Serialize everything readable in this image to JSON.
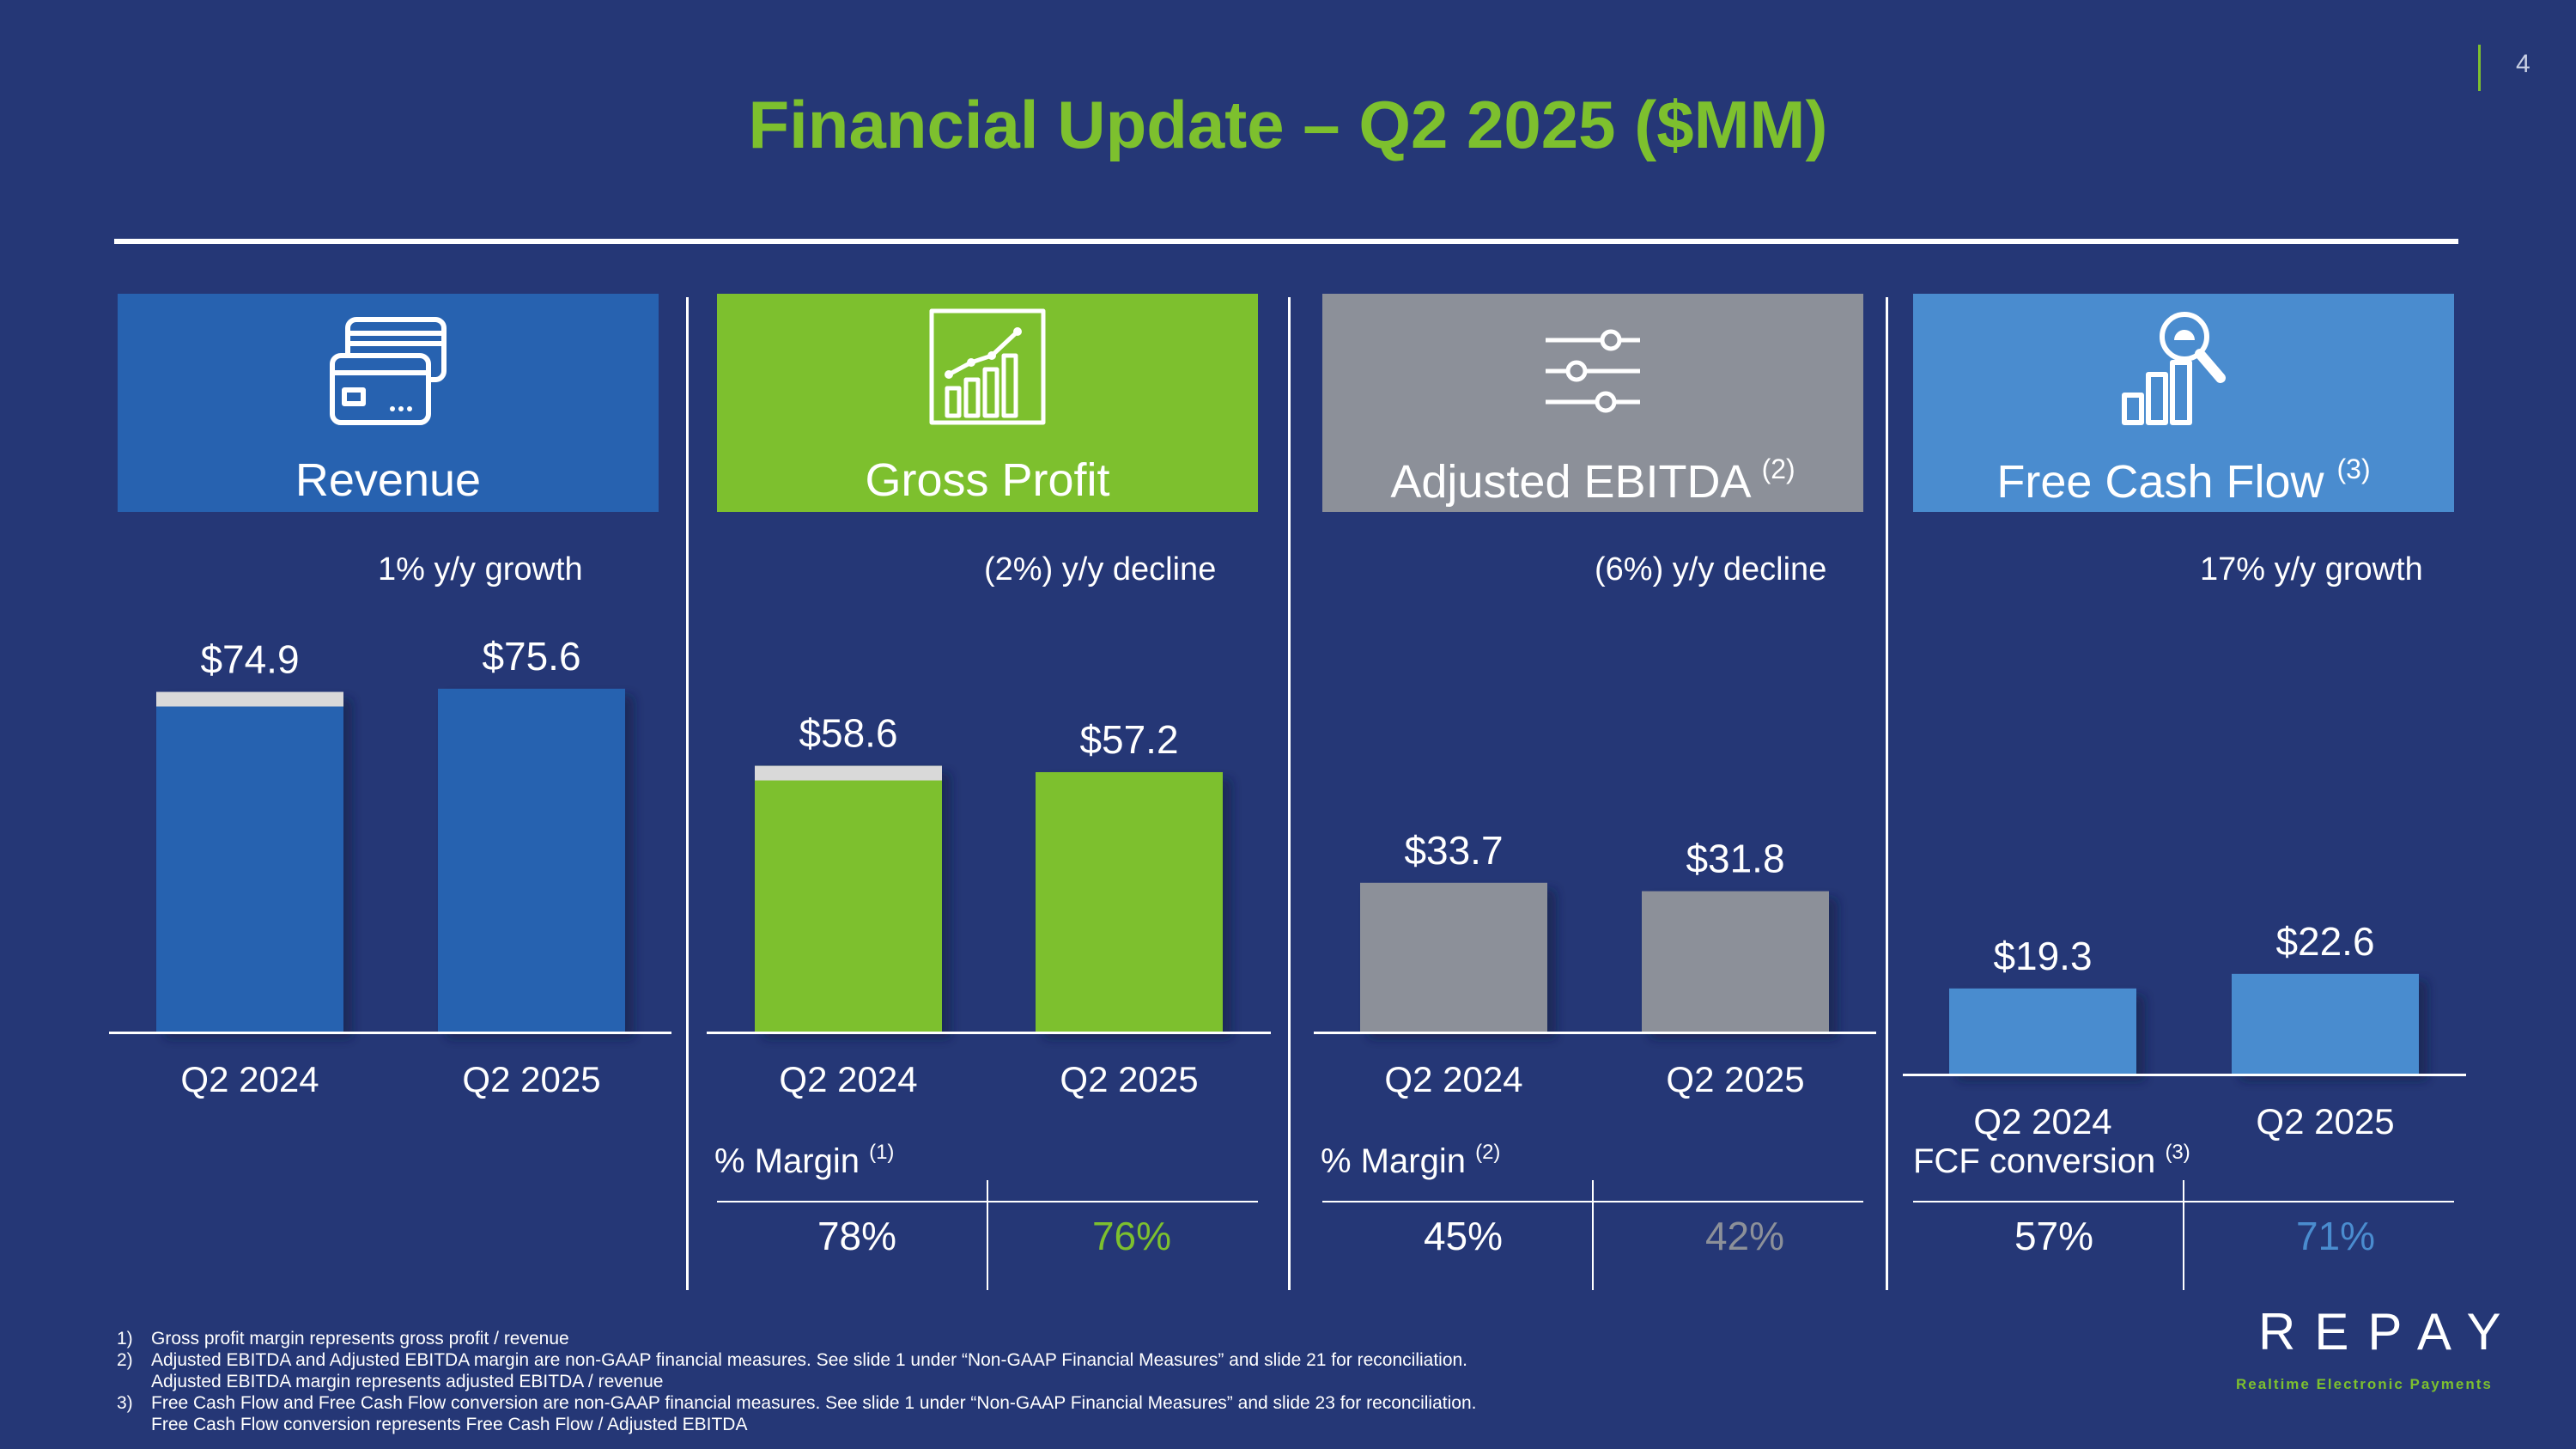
{
  "page_number": "4",
  "title": "Financial Update – Q2 2025 ($MM)",
  "colors": {
    "background": "#253776",
    "accent_green": "#7dc02e",
    "revenue_blue": "#2762b0",
    "ebitda_gray": "#8c9099",
    "fcf_blue": "#4a8ccf",
    "prior_year_cap": "#d9d9d9"
  },
  "panels": [
    {
      "title": "Revenue",
      "sup": "",
      "icon": "credit-cards-icon",
      "growth": "1% y/y growth"
    },
    {
      "title": "Gross Profit",
      "sup": "",
      "icon": "growth-chart-icon",
      "growth": "(2%) y/y decline",
      "metric_label": "% Margin",
      "metric_sup": "(1)",
      "metric_values": [
        "78%",
        "76%"
      ]
    },
    {
      "title": "Adjusted EBITDA",
      "sup": "(2)",
      "icon": "sliders-icon",
      "growth": "(6%) y/y decline",
      "metric_label": "% Margin",
      "metric_sup": "(2)",
      "metric_values": [
        "45%",
        "42%"
      ]
    },
    {
      "title": "Free Cash Flow",
      "sup": "(3)",
      "icon": "bar-magnifier-icon",
      "growth": "17% y/y growth",
      "metric_label": "FCF conversion",
      "metric_sup": "(3)",
      "metric_values": [
        "57%",
        "71%"
      ]
    }
  ],
  "chart_data": [
    {
      "type": "bar",
      "title": "Revenue",
      "categories": [
        "Q2 2024",
        "Q2 2025"
      ],
      "values": [
        74.9,
        75.6
      ],
      "labels": [
        "$74.9",
        "$75.6"
      ],
      "ylim": [
        0,
        80
      ],
      "color": "#2762b0",
      "prior_year_cap": true
    },
    {
      "type": "bar",
      "title": "Gross Profit",
      "categories": [
        "Q2 2024",
        "Q2 2025"
      ],
      "values": [
        58.6,
        57.2
      ],
      "labels": [
        "$58.6",
        "$57.2"
      ],
      "ylim": [
        0,
        80
      ],
      "color": "#7dc02e",
      "prior_year_cap": true
    },
    {
      "type": "bar",
      "title": "Adjusted EBITDA",
      "categories": [
        "Q2 2024",
        "Q2 2025"
      ],
      "values": [
        33.7,
        31.8
      ],
      "labels": [
        "$33.7",
        "$31.8"
      ],
      "ylim": [
        0,
        50
      ],
      "color": "#8c9099",
      "prior_year_cap": false
    },
    {
      "type": "bar",
      "title": "Free Cash Flow",
      "categories": [
        "Q2 2024",
        "Q2 2025"
      ],
      "values": [
        19.3,
        22.6
      ],
      "labels": [
        "$19.3",
        "$22.6"
      ],
      "ylim": [
        0,
        50
      ],
      "color": "#4a8ccf",
      "prior_year_cap": false
    }
  ],
  "footnotes": [
    {
      "num": "1)",
      "lines": [
        "Gross profit margin represents gross profit / revenue"
      ]
    },
    {
      "num": "2)",
      "lines": [
        "Adjusted EBITDA and Adjusted EBITDA margin are non-GAAP financial measures. See slide 1 under “Non-GAAP Financial Measures” and slide 21 for reconciliation.",
        "Adjusted EBITDA margin represents adjusted EBITDA / revenue"
      ]
    },
    {
      "num": "3)",
      "lines": [
        "Free Cash Flow and Free Cash Flow conversion are non-GAAP financial measures. See slide 1 under “Non-GAAP Financial Measures” and slide 23 for reconciliation.",
        "Free Cash Flow conversion represents Free Cash Flow / Adjusted EBITDA"
      ]
    }
  ],
  "logo": {
    "name": "REPAY",
    "tagline": "Realtime Electronic Payments"
  }
}
